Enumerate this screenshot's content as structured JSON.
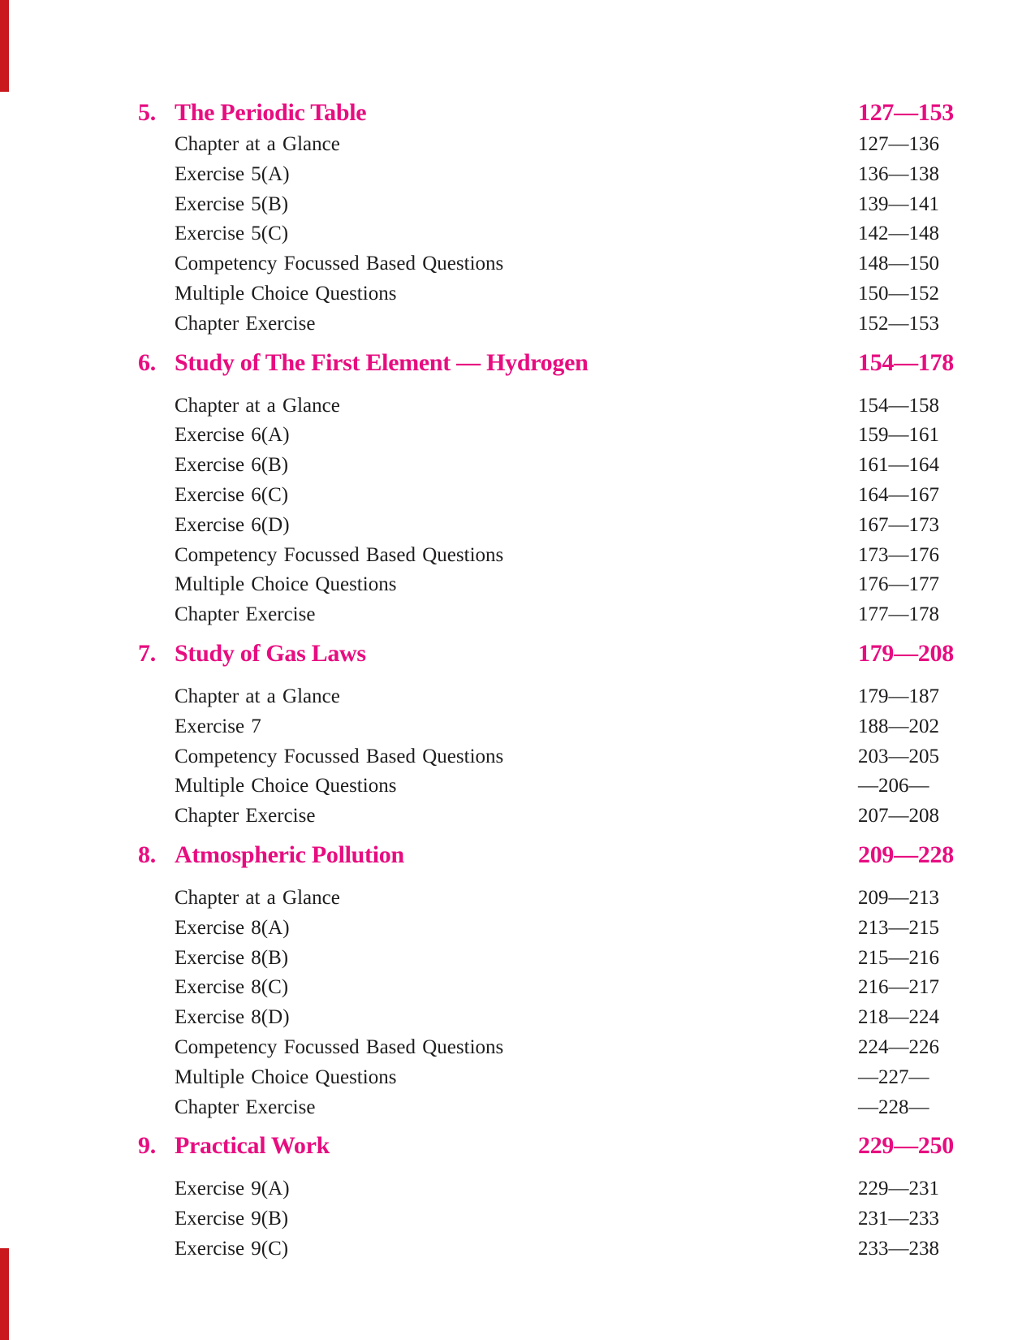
{
  "page": {
    "accent_color": "#e70d80",
    "text_color": "#1e1c1c",
    "edge_bar_color": "#c9181e"
  },
  "toc": {
    "sections": [
      {
        "number": "5.",
        "title": "The Periodic Table",
        "pages": "127—153",
        "items": [
          {
            "label": "Chapter at a Glance",
            "pages": "127—136"
          },
          {
            "label": "Exercise 5(A)",
            "pages": "136—138"
          },
          {
            "label": "Exercise 5(B)",
            "pages": "139—141"
          },
          {
            "label": "Exercise 5(C)",
            "pages": "142—148"
          },
          {
            "label": "Competency Focussed Based Questions",
            "pages": "148—150"
          },
          {
            "label": "Multiple Choice Questions",
            "pages": "150—152"
          },
          {
            "label": "Chapter Exercise",
            "pages": "152—153"
          }
        ]
      },
      {
        "number": "6.",
        "title": "Study of The First Element — Hydrogen",
        "pages": "154—178",
        "items": [
          {
            "label": "Chapter at a Glance",
            "pages": "154—158"
          },
          {
            "label": "Exercise 6(A)",
            "pages": "159—161"
          },
          {
            "label": "Exercise 6(B)",
            "pages": "161—164"
          },
          {
            "label": "Exercise 6(C)",
            "pages": "164—167"
          },
          {
            "label": "Exercise 6(D)",
            "pages": "167—173"
          },
          {
            "label": "Competency Focussed Based Questions",
            "pages": "173—176"
          },
          {
            "label": "Multiple Choice Questions",
            "pages": "176—177"
          },
          {
            "label": "Chapter Exercise",
            "pages": "177—178"
          }
        ]
      },
      {
        "number": "7.",
        "title": "Study of Gas Laws",
        "pages": "179—208",
        "items": [
          {
            "label": "Chapter at a Glance",
            "pages": "179—187"
          },
          {
            "label": "Exercise 7",
            "pages": "188—202"
          },
          {
            "label": "Competency Focussed Based Questions",
            "pages": "203—205"
          },
          {
            "label": "Multiple Choice Questions",
            "pages": "—206—"
          },
          {
            "label": "Chapter Exercise",
            "pages": "207—208"
          }
        ]
      },
      {
        "number": "8.",
        "title": "Atmospheric Pollution",
        "pages": "209—228",
        "items": [
          {
            "label": "Chapter at a Glance",
            "pages": "209—213"
          },
          {
            "label": "Exercise 8(A)",
            "pages": "213—215"
          },
          {
            "label": "Exercise 8(B)",
            "pages": "215—216"
          },
          {
            "label": "Exercise 8(C)",
            "pages": "216—217"
          },
          {
            "label": "Exercise 8(D)",
            "pages": "218—224"
          },
          {
            "label": "Competency Focussed Based Questions",
            "pages": "224—226"
          },
          {
            "label": "Multiple Choice Questions",
            "pages": "—227—"
          },
          {
            "label": "Chapter Exercise",
            "pages": "—228—"
          }
        ]
      },
      {
        "number": "9.",
        "title": "Practical Work",
        "pages": "229—250",
        "items": [
          {
            "label": "Exercise 9(A)",
            "pages": "229—231"
          },
          {
            "label": "Exercise 9(B)",
            "pages": "231—233"
          },
          {
            "label": "Exercise 9(C)",
            "pages": "233—238"
          }
        ]
      }
    ]
  }
}
